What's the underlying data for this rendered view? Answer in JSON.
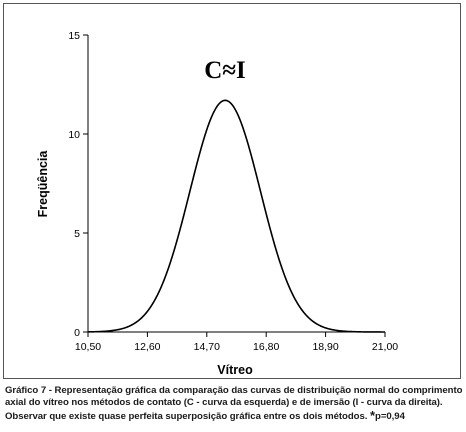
{
  "chart_data": {
    "type": "line",
    "xlabel": "Vítreo",
    "ylabel": "Freqüência",
    "annotation": "C≈I",
    "xlim": [
      10.5,
      21.0
    ],
    "ylim": [
      0,
      15
    ],
    "x_ticks": [
      10.5,
      12.6,
      14.7,
      16.8,
      18.9,
      21.0
    ],
    "x_tick_labels": [
      "10,50",
      "12,60",
      "14,70",
      "16,80",
      "18,90",
      "21,00"
    ],
    "y_ticks": [
      0,
      5,
      10,
      15
    ],
    "y_tick_labels": [
      "0",
      "5",
      "10",
      "15"
    ],
    "grid": false,
    "series": [
      {
        "distribution": "normal",
        "mean": 15.35,
        "std": 1.25,
        "peak": 11.7,
        "color": "#000000"
      }
    ]
  },
  "caption": {
    "line1": "Gráfico 7 - Representação gráfica da comparação das curvas de  distribuição normal do comprimento",
    "line2": "axial do vítreo nos métodos de contato (C - curva da esquerda) e de imersão (I -  curva da direita).",
    "line3_text": "Observar que existe  quase  perfeita  superposição  gráfica  entre  os  dois  métodos.",
    "line3_star": "*",
    "line3_pvalue": "p=0,94"
  }
}
